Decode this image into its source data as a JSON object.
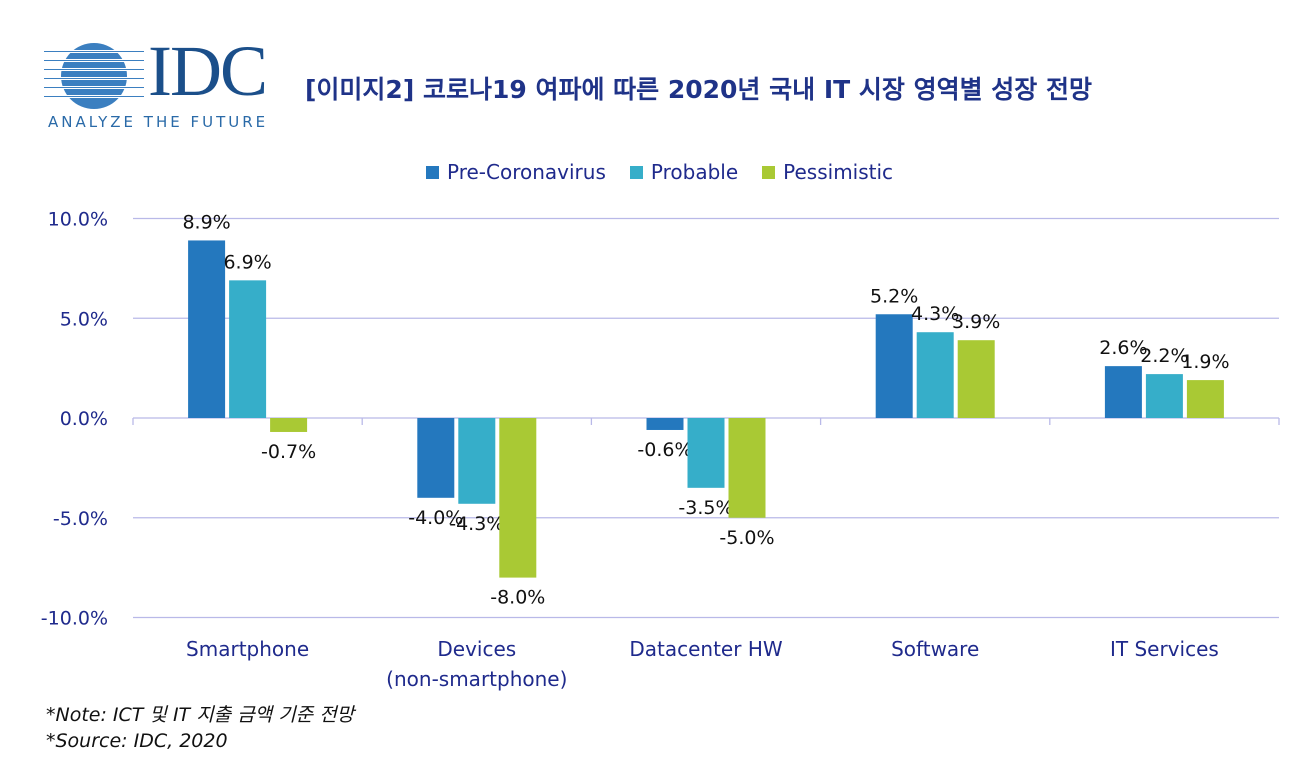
{
  "logo": {
    "text": "IDC",
    "tagline": "ANALYZE THE FUTURE"
  },
  "title": "[이미지2] 코로나19 여파에 따른 2020년 국내 IT 시장 영역별 성장 전망",
  "notes": {
    "note": "*Note: ICT 및 IT 지출 금액 기준 전망",
    "source": "*Source: IDC, 2020"
  },
  "colors": {
    "Pre-Coronavirus": "#2478be",
    "Probable": "#36aec9",
    "Pessimistic": "#a9c934",
    "grid": "#b9b9e8",
    "axis_text": "#1f2a8c"
  },
  "chart_data": {
    "type": "bar",
    "title": "[이미지2] 코로나19 여파에 따른 2020년 국내 IT 시장 영역별 성장 전망",
    "categories": [
      [
        "Smartphone"
      ],
      [
        "Devices",
        "(non-smartphone)"
      ],
      [
        "Datacenter HW"
      ],
      [
        "Software"
      ],
      [
        "IT Services"
      ]
    ],
    "series": [
      {
        "name": "Pre-Coronavirus",
        "values": [
          8.9,
          -4.0,
          -0.6,
          5.2,
          2.6
        ]
      },
      {
        "name": "Probable",
        "values": [
          6.9,
          -4.3,
          -3.5,
          4.3,
          2.2
        ]
      },
      {
        "name": "Pessimistic",
        "values": [
          -0.7,
          -8.0,
          -5.0,
          3.9,
          1.9
        ]
      }
    ],
    "yticks": [
      "10.0%",
      "5.0%",
      "0.0%",
      "-5.0%",
      "-10.0%"
    ],
    "ytick_values": [
      10,
      5,
      0,
      -5,
      -10
    ],
    "ylim": [
      -10,
      10
    ],
    "grid": true,
    "legend": "top-center"
  }
}
